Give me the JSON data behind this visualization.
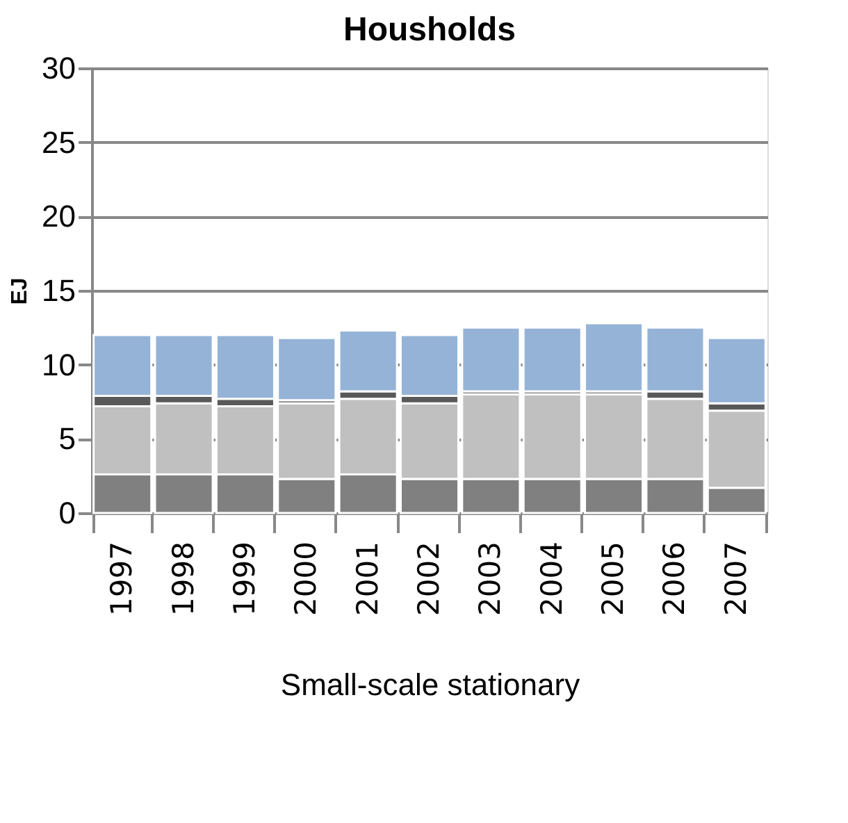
{
  "chart_data": {
    "type": "bar",
    "title": "Housholds",
    "ylabel": "EJ",
    "xlabel": "Small-scale stationary",
    "categories": [
      "1997",
      "1998",
      "1999",
      "2000",
      "2001",
      "2002",
      "2003",
      "2004",
      "2005",
      "2006",
      "2007"
    ],
    "stacked": true,
    "grid": "y",
    "legend": false,
    "series": [
      {
        "color": "#808080",
        "values": [
          2.6,
          2.6,
          2.6,
          2.3,
          2.6,
          2.3,
          2.3,
          2.3,
          2.3,
          2.3,
          1.7
        ]
      },
      {
        "color": "#c0c0c0",
        "values": [
          4.6,
          4.8,
          4.6,
          5.1,
          5.1,
          5.1,
          5.7,
          5.7,
          5.7,
          5.4,
          5.2
        ]
      },
      {
        "color": "#595959",
        "values": [
          0.7,
          0.5,
          0.5,
          0.2,
          0.5,
          0.5,
          0.2,
          0.2,
          0.2,
          0.5,
          0.5
        ]
      },
      {
        "color": "#95b3d7",
        "values": [
          4.1,
          4.1,
          4.3,
          4.2,
          4.1,
          4.1,
          4.3,
          4.3,
          4.6,
          4.3,
          4.4
        ]
      }
    ],
    "ylim": [
      0,
      30
    ],
    "yticks": [
      0,
      5,
      10,
      15,
      20,
      25,
      30
    ]
  }
}
